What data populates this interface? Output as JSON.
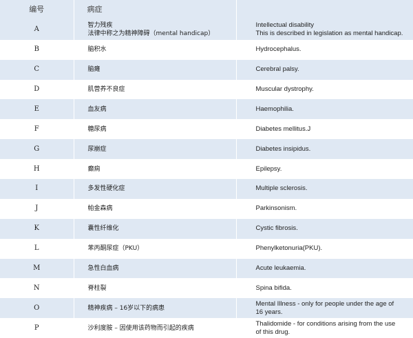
{
  "header": {
    "code": "编号",
    "disease": "病症",
    "english": ""
  },
  "rows": [
    {
      "code": "A",
      "zh": "智力残疾",
      "zh2": "法律中称之为精神障碍（mental handicap）",
      "en": "Intellectual disability",
      "en2": "This is described in legislation as mental handicap."
    },
    {
      "code": "B",
      "zh": "脑积水",
      "en": "Hydrocephalus."
    },
    {
      "code": "C",
      "zh": "脑瘫",
      "en": "Cerebral palsy."
    },
    {
      "code": "D",
      "zh": "肌营养不良症",
      "en": "Muscular dystrophy."
    },
    {
      "code": "E",
      "zh": "血友病",
      "en": "Haemophilia."
    },
    {
      "code": "F",
      "zh": "糖尿病",
      "en": "Diabetes mellitus.J"
    },
    {
      "code": "G",
      "zh": "尿崩症",
      "en": "Diabetes insipidus."
    },
    {
      "code": "H",
      "zh": "癫痫",
      "en": "Epilepsy."
    },
    {
      "code": "I",
      "zh": "多发性硬化症",
      "en": "Multiple sclerosis."
    },
    {
      "code": "J",
      "zh": "帕金森病",
      "en": "Parkinsonism."
    },
    {
      "code": "K",
      "zh": "囊性纤维化",
      "en": "Cystic fibrosis."
    },
    {
      "code": "L",
      "zh": "苯丙酮尿症（PKU）",
      "en": "Phenylketonuria(PKU)."
    },
    {
      "code": "M",
      "zh": "急性白血病",
      "en": "Acute leukaemia."
    },
    {
      "code": "N",
      "zh": "脊柱裂",
      "en": "Spina bifida."
    },
    {
      "code": "O",
      "zh": "精神疾病 – 16岁以下的病患",
      "en": "Mental Illness - only for people under the age of",
      "en2": "16 years."
    },
    {
      "code": "P",
      "zh": "沙利度胺 – 因使用该药物而引起的疾病",
      "en": "Thalidomide - for conditions arising from the use",
      "en2": "of this drug."
    }
  ],
  "colors": {
    "shade": "#dfe8f3"
  }
}
